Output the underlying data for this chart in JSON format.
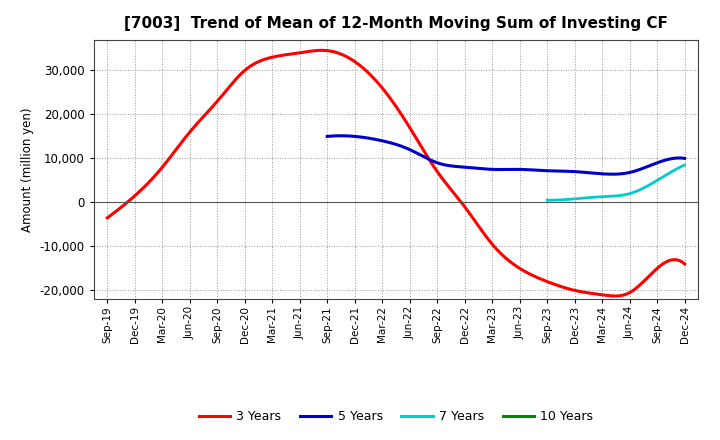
{
  "title": "[7003]  Trend of Mean of 12-Month Moving Sum of Investing CF",
  "ylabel": "Amount (million yen)",
  "background_color": "#ffffff",
  "plot_background": "#ffffff",
  "grid_color": "#999999",
  "x_labels": [
    "Sep-19",
    "Dec-19",
    "Mar-20",
    "Jun-20",
    "Sep-20",
    "Dec-20",
    "Mar-21",
    "Jun-21",
    "Sep-21",
    "Dec-21",
    "Mar-22",
    "Jun-22",
    "Sep-22",
    "Dec-22",
    "Mar-23",
    "Jun-23",
    "Sep-23",
    "Dec-23",
    "Mar-24",
    "Jun-24",
    "Sep-24",
    "Dec-24"
  ],
  "series": {
    "3 Years": {
      "color": "#ff0000",
      "linewidth": 2.2,
      "data_indices": [
        0,
        1,
        2,
        3,
        4,
        5,
        6,
        7,
        8,
        9,
        10,
        11,
        12,
        13,
        14,
        15,
        16,
        17,
        18,
        19,
        20,
        21
      ],
      "values": [
        -3500,
        1500,
        8000,
        16000,
        23000,
        30000,
        33000,
        34000,
        34500,
        32000,
        26000,
        17000,
        7000,
        -1000,
        -9500,
        -15000,
        -18000,
        -20000,
        -21000,
        -20500,
        -15000,
        -14000
      ]
    },
    "5 Years": {
      "color": "#0000cc",
      "linewidth": 2.2,
      "data_indices": [
        8,
        9,
        10,
        11,
        12,
        13,
        14,
        15,
        16,
        17,
        18,
        19,
        20,
        21
      ],
      "values": [
        15000,
        15000,
        14000,
        12000,
        9000,
        8000,
        7500,
        7500,
        7200,
        7000,
        6500,
        6800,
        9000,
        10000
      ]
    },
    "7 Years": {
      "color": "#00cccc",
      "linewidth": 2.0,
      "data_indices": [
        16,
        17,
        18,
        19,
        20,
        21
      ],
      "values": [
        500,
        800,
        1300,
        2000,
        5000,
        8500
      ]
    },
    "10 Years": {
      "color": "#008800",
      "linewidth": 2.0,
      "data_indices": [],
      "values": []
    }
  },
  "ylim": [
    -22000,
    37000
  ],
  "yticks": [
    -20000,
    -10000,
    0,
    10000,
    20000,
    30000
  ],
  "legend_labels": [
    "3 Years",
    "5 Years",
    "7 Years",
    "10 Years"
  ],
  "legend_colors": [
    "#ff0000",
    "#0000cc",
    "#00cccc",
    "#008800"
  ]
}
